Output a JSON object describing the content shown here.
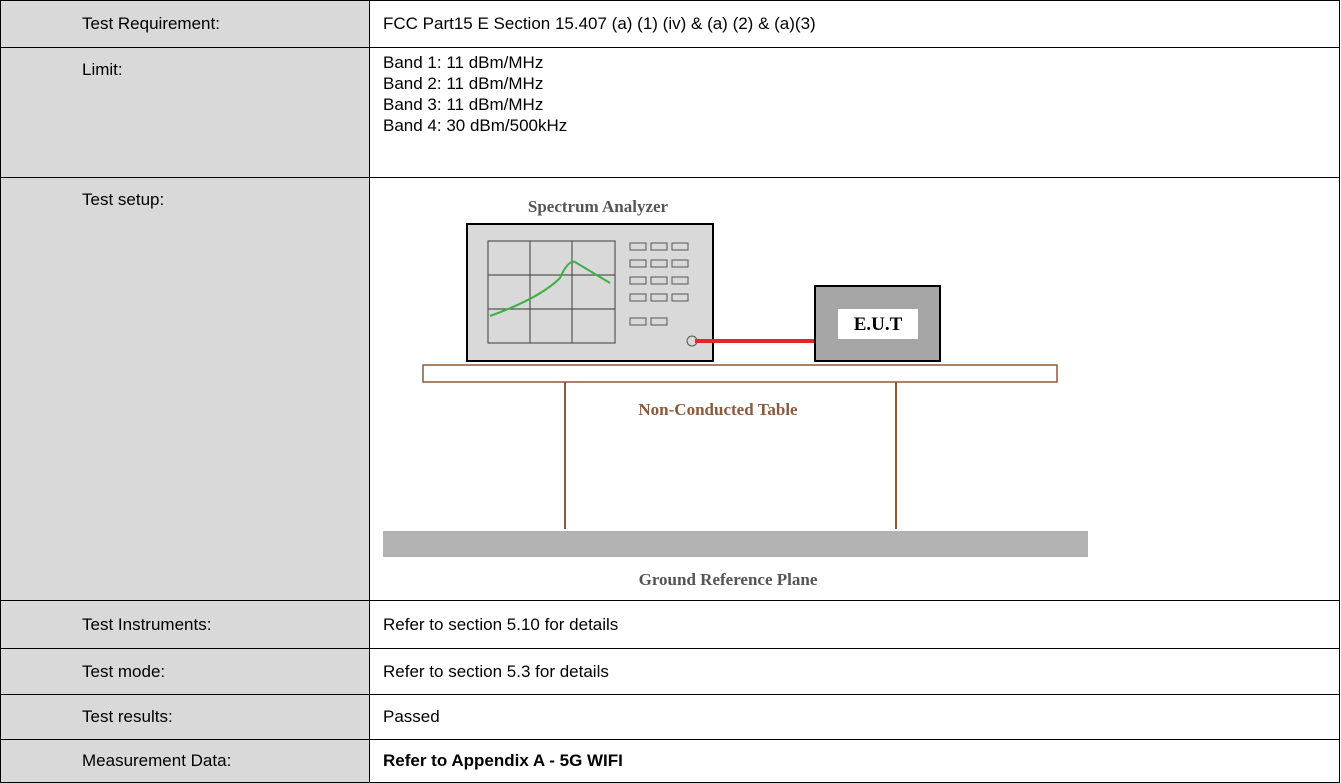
{
  "table": {
    "rows": [
      {
        "label": "Test Requirement:",
        "content": "FCC Part15 E Section 15.407 (a) (1) (iv) & (a) (2) & (a)(3)"
      },
      {
        "label": "Limit:",
        "lines": [
          "Band 1: 11 dBm/MHz",
          "Band 2: 11 dBm/MHz",
          "Band 3: 11 dBm/MHz",
          "Band 4: 30 dBm/500kHz"
        ]
      },
      {
        "label": "Test setup:",
        "diagram": {
          "analyzer": "Spectrum Analyzer",
          "eut": "E.U.T",
          "table": "Non-Conducted Table",
          "ground": "Ground Reference Plane"
        }
      },
      {
        "label": "Test Instruments:",
        "content": "Refer to section 5.10 for details"
      },
      {
        "label": "Test mode:",
        "content": "Refer to section 5.3 for details"
      },
      {
        "label": "Test results:",
        "content": "Passed"
      },
      {
        "label": "Measurement Data:",
        "content": "Refer to Appendix A - 5G WIFI"
      }
    ]
  }
}
